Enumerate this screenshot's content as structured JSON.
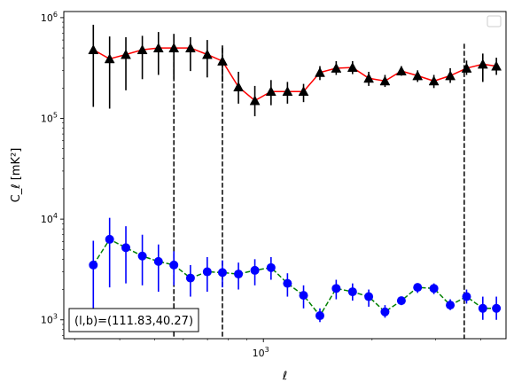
{
  "chart_data": {
    "type": "line",
    "title": "",
    "xlabel": "ℓ",
    "ylabel": "C_ℓ  [mK²]",
    "xscale": "log",
    "yscale": "log",
    "xlim": [
      280,
      4700
    ],
    "ylim": [
      650,
      1150000
    ],
    "x_tick_major": [
      {
        "value": 1000,
        "base": "10",
        "exp": "3"
      }
    ],
    "y_tick_major": [
      {
        "value": 1000,
        "base": "10",
        "exp": "3"
      },
      {
        "value": 10000,
        "base": "10",
        "exp": "4"
      },
      {
        "value": 100000,
        "base": "10",
        "exp": "5"
      },
      {
        "value": 1000000,
        "base": "10",
        "exp": "6"
      }
    ],
    "grid": false,
    "legend": {
      "placement": "top-right",
      "entries": []
    },
    "vlines": [
      565,
      770,
      3600
    ],
    "annotation": "(l,b)=(111.83,40.27)",
    "series": [
      {
        "marker": "triangle",
        "marker_color": "#000000",
        "line_color": "#ff0000",
        "line_style": "solid",
        "x": [
          338,
          375,
          416,
          462,
          512,
          565,
          628,
          699,
          770,
          853,
          947,
          1050,
          1166,
          1292,
          1434,
          1591,
          1766,
          1958,
          2172,
          2411,
          2674,
          2967,
          3293,
          3654,
          4053,
          4420
        ],
        "y": [
          480000,
          390000,
          430000,
          480000,
          500000,
          500000,
          500000,
          430000,
          370000,
          205000,
          150000,
          185000,
          185000,
          185000,
          285000,
          315000,
          320000,
          250000,
          235000,
          295000,
          265000,
          235000,
          265000,
          315000,
          345000,
          330000
        ],
        "err_low": [
          130000,
          125000,
          190000,
          245000,
          270000,
          245000,
          295000,
          255000,
          230000,
          140000,
          105000,
          135000,
          140000,
          145000,
          240000,
          270000,
          275000,
          210000,
          205000,
          265000,
          230000,
          200000,
          225000,
          270000,
          230000,
          270000
        ],
        "err_high": [
          850000,
          650000,
          640000,
          660000,
          720000,
          690000,
          640000,
          600000,
          530000,
          290000,
          210000,
          240000,
          230000,
          220000,
          330000,
          370000,
          370000,
          290000,
          270000,
          330000,
          300000,
          270000,
          315000,
          375000,
          440000,
          400000
        ]
      },
      {
        "marker": "circle",
        "marker_color": "#0000ff",
        "line_color": "#008000",
        "line_style": "dashed",
        "x": [
          338,
          375,
          416,
          462,
          512,
          565,
          628,
          699,
          770,
          853,
          947,
          1050,
          1166,
          1292,
          1434,
          1591,
          1766,
          1958,
          2172,
          2411,
          2674,
          2967,
          3293,
          3654,
          4053,
          4420
        ],
        "y": [
          3500,
          6300,
          5200,
          4300,
          3800,
          3500,
          2600,
          3000,
          2950,
          2850,
          3100,
          3300,
          2300,
          1750,
          1100,
          2050,
          1900,
          1700,
          1200,
          1550,
          2100,
          2050,
          1400,
          1700,
          1300,
          1300
        ],
        "err_low": [
          1000,
          2100,
          2300,
          2200,
          1900,
          2200,
          1700,
          1900,
          2100,
          2000,
          2200,
          2500,
          1700,
          1300,
          950,
          1600,
          1550,
          1350,
          1050,
          1400,
          1850,
          1800,
          1250,
          1450,
          1000,
          1000
        ],
        "err_high": [
          6100,
          10300,
          8500,
          7000,
          5600,
          4800,
          3500,
          4200,
          3900,
          3700,
          4000,
          4200,
          2900,
          2200,
          1300,
          2500,
          2300,
          2000,
          1400,
          1700,
          2300,
          2300,
          1600,
          2000,
          1700,
          1700
        ]
      }
    ]
  }
}
